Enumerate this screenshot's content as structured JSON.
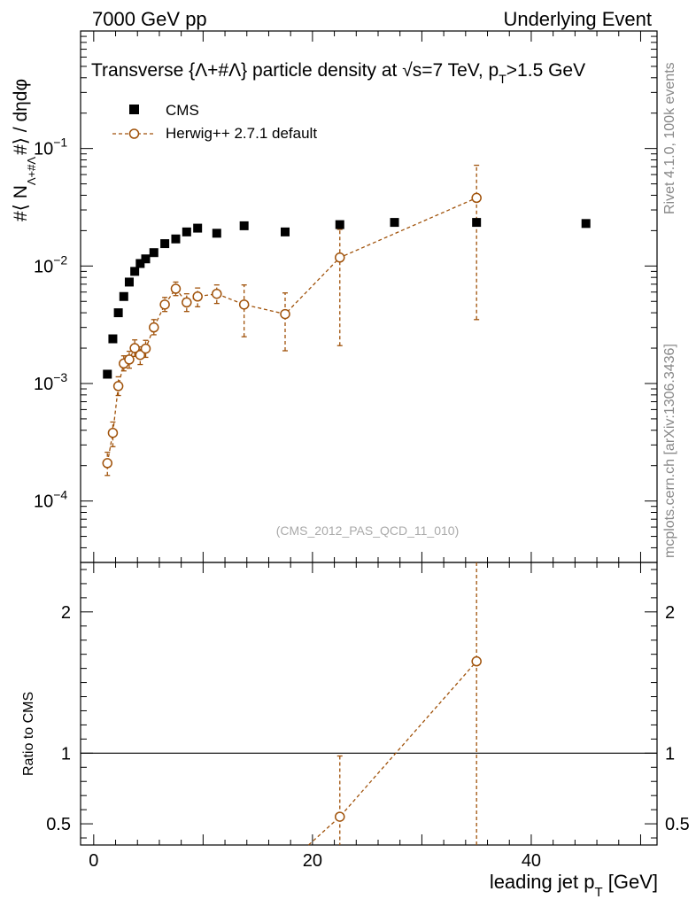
{
  "header": {
    "left": "7000 GeV pp",
    "right": "Underlying Event"
  },
  "side": {
    "rivet": "Rivet 4.1.0,  100k events",
    "site": "mcplots.cern.ch [arXiv:1306.3436]"
  },
  "colors": {
    "cms": "#000000",
    "herwig": "#a0520a",
    "frame": "#000000"
  },
  "chart_data": {
    "type": "scatter",
    "title": "Transverse {Λ+#Λ̅} particle density at √s=7 TeV, p_T>1.5 GeV",
    "title_parts": {
      "main": "Transverse {Λ+#Λ} particle density at √s=7 TeV, p",
      "sub": "T",
      "tail": ">1.5 GeV"
    },
    "ylabel": "#⟨ N_{Λ+#Λ} #⟩ / dηdφ",
    "ylabel_parts": {
      "a": "#⟨ N",
      "sub": "Λ+#Λ",
      "b": "#⟩ / dηdφ"
    },
    "xlabel": "leading jet p_T [GeV]",
    "xlabel_parts": {
      "a": "leading jet p",
      "sub": "T",
      "b": " [GeV]"
    },
    "watermark": "(CMS_2012_PAS_QCD_11_010)",
    "xlim": [
      -1.2,
      51.5
    ],
    "ylim": [
      3e-05,
      1.0
    ],
    "yscale": "log",
    "x_ticks": [
      0,
      20,
      40
    ],
    "x_tick_labels": [
      "0",
      "20",
      "40"
    ],
    "y_ticks": [
      0.0001,
      0.001,
      0.01,
      0.1
    ],
    "y_tick_labels": [
      {
        "base": "10",
        "exp": "−4"
      },
      {
        "base": "10",
        "exp": "−3"
      },
      {
        "base": "10",
        "exp": "−2"
      },
      {
        "base": "10",
        "exp": "−1"
      }
    ],
    "legend": [
      {
        "label": "CMS"
      },
      {
        "label": "Herwig++ 2.7.1 default"
      }
    ],
    "cms": {
      "name": "CMS",
      "x": [
        1.25,
        1.75,
        2.25,
        2.75,
        3.25,
        3.75,
        4.25,
        4.75,
        5.5,
        6.5,
        7.5,
        8.5,
        9.5,
        11.25,
        13.75,
        17.5,
        22.5,
        27.5,
        35,
        45
      ],
      "y": [
        0.0012,
        0.0024,
        0.004,
        0.0055,
        0.0073,
        0.009,
        0.0105,
        0.0115,
        0.013,
        0.0155,
        0.017,
        0.0195,
        0.021,
        0.019,
        0.022,
        0.0195,
        0.0225,
        0.0235,
        0.0235,
        0.023
      ]
    },
    "herwig": {
      "name": "Herwig++ 2.7.1 default",
      "x": [
        1.25,
        1.75,
        2.25,
        2.75,
        3.25,
        3.75,
        4.25,
        4.75,
        5.5,
        6.5,
        7.5,
        8.5,
        9.5,
        11.25,
        13.75,
        17.5,
        22.5,
        35
      ],
      "y": [
        0.00021,
        0.00038,
        0.00095,
        0.00148,
        0.0016,
        0.002,
        0.00175,
        0.00198,
        0.003,
        0.0047,
        0.0064,
        0.0049,
        0.0055,
        0.0058,
        0.0047,
        0.0039,
        0.0118,
        0.038
      ],
      "yerr_low": [
        0.000165,
        0.00029,
        0.00079,
        0.00128,
        0.00135,
        0.0017,
        0.00145,
        0.00167,
        0.0026,
        0.0041,
        0.0056,
        0.0041,
        0.0045,
        0.0048,
        0.0025,
        0.0019,
        0.0021,
        0.0035
      ],
      "yerr_high": [
        0.00026,
        0.00047,
        0.00114,
        0.00172,
        0.00188,
        0.00235,
        0.00205,
        0.00233,
        0.0035,
        0.0054,
        0.0073,
        0.0058,
        0.0065,
        0.0069,
        0.0069,
        0.0059,
        0.0205,
        0.072
      ]
    },
    "ratio": {
      "ylabel": "Ratio to CMS",
      "ylim": [
        0.35,
        2.35
      ],
      "y_ticks": [
        0.5,
        1,
        2
      ],
      "y_tick_labels": [
        "0.5",
        "1",
        "2"
      ],
      "reference": 1,
      "x": [
        22.5,
        35
      ],
      "y": [
        0.55,
        1.65
      ],
      "yerr_low": [
        0.1,
        0.15
      ],
      "yerr_high": [
        0.98,
        3.0
      ],
      "offscale_from": {
        "x": 17.5,
        "y": 0.2
      }
    }
  }
}
